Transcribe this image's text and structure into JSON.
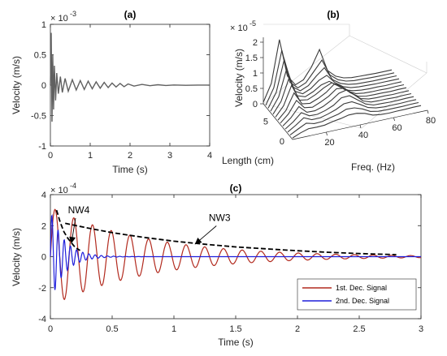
{
  "chart_data": [
    {
      "panel": "a",
      "type": "line",
      "title": "(a)",
      "xlabel": "Time (s)",
      "ylabel": "Velocity (m/s)",
      "exponent_label": "× 10",
      "exponent_power": "-3",
      "xlim": [
        0,
        4
      ],
      "ylim": [
        -1,
        1
      ],
      "xticks": [
        "0",
        "1",
        "2",
        "3",
        "4"
      ],
      "yticks": [
        "-1",
        "-0.5",
        "0",
        "0.5",
        "1"
      ],
      "series": [
        {
          "color": "#606060",
          "x": [
            0.0,
            0.02,
            0.04,
            0.06,
            0.08,
            0.1,
            0.13,
            0.16,
            0.2,
            0.25,
            0.3,
            0.37,
            0.45,
            0.55,
            0.65,
            0.75,
            0.85,
            0.95,
            1.05,
            1.15,
            1.25,
            1.35,
            1.45,
            1.55,
            1.65,
            1.75,
            1.85,
            1.95,
            2.1,
            2.3,
            2.5,
            2.7,
            2.9,
            3.1,
            3.4,
            3.7,
            4.0
          ],
          "y": [
            0.0,
            0.86,
            -0.6,
            0.5,
            -0.4,
            0.32,
            -0.25,
            0.2,
            -0.14,
            0.14,
            -0.12,
            0.11,
            -0.1,
            0.09,
            -0.08,
            0.075,
            -0.07,
            0.065,
            -0.06,
            0.055,
            -0.05,
            0.045,
            -0.04,
            0.035,
            -0.03,
            0.028,
            -0.025,
            0.02,
            -0.016,
            0.012,
            -0.009,
            0.007,
            -0.005,
            0.003,
            -0.002,
            0.001,
            0.0
          ]
        }
      ]
    },
    {
      "panel": "b",
      "type": "line",
      "title": "(b)",
      "xlabel": "Freq. (Hz)",
      "ylabel": "Velocity (m/s)",
      "zlabel": "Length (cm)",
      "exponent_label": "× 10",
      "exponent_power": "-5",
      "xlim": [
        0,
        80
      ],
      "zlim": [
        0,
        2
      ],
      "xticks": [
        "20",
        "40",
        "60",
        "80"
      ],
      "lengthticks": [
        "0",
        "5"
      ],
      "zticks": [
        "0",
        "0.5",
        "1",
        "1.5",
        "2"
      ],
      "freq": [
        0,
        5,
        10,
        15,
        20,
        25,
        30,
        35,
        40,
        45,
        50,
        55,
        60,
        65,
        70,
        75,
        80
      ],
      "spectra": [
        [
          0.05,
          0.6,
          1.95,
          0.7,
          0.35,
          0.45,
          0.8,
          1.3,
          0.55,
          0.3,
          0.18,
          0.12,
          0.1,
          0.08,
          0.06,
          0.05,
          0.04
        ],
        [
          0.05,
          0.55,
          1.7,
          0.6,
          0.35,
          0.45,
          0.75,
          1.05,
          0.5,
          0.28,
          0.17,
          0.12,
          0.1,
          0.08,
          0.06,
          0.05,
          0.04
        ],
        [
          0.05,
          0.5,
          1.5,
          0.55,
          0.35,
          0.45,
          0.7,
          0.9,
          0.45,
          0.26,
          0.16,
          0.11,
          0.09,
          0.07,
          0.06,
          0.05,
          0.04
        ],
        [
          0.05,
          0.45,
          1.3,
          0.5,
          0.35,
          0.45,
          0.65,
          0.75,
          0.45,
          0.25,
          0.15,
          0.11,
          0.09,
          0.07,
          0.06,
          0.05,
          0.04
        ],
        [
          0.05,
          0.4,
          1.1,
          0.45,
          0.35,
          0.45,
          0.6,
          0.65,
          0.45,
          0.24,
          0.15,
          0.1,
          0.08,
          0.07,
          0.05,
          0.05,
          0.04
        ],
        [
          0.05,
          0.35,
          0.95,
          0.4,
          0.35,
          0.45,
          0.6,
          0.7,
          0.55,
          0.3,
          0.15,
          0.1,
          0.08,
          0.07,
          0.05,
          0.05,
          0.04
        ],
        [
          0.05,
          0.3,
          0.8,
          0.38,
          0.33,
          0.42,
          0.55,
          0.75,
          0.6,
          0.34,
          0.16,
          0.1,
          0.08,
          0.07,
          0.05,
          0.05,
          0.04
        ],
        [
          0.05,
          0.28,
          0.65,
          0.35,
          0.3,
          0.4,
          0.52,
          0.7,
          0.65,
          0.4,
          0.18,
          0.1,
          0.08,
          0.07,
          0.05,
          0.05,
          0.04
        ],
        [
          0.05,
          0.25,
          0.55,
          0.3,
          0.28,
          0.35,
          0.48,
          0.65,
          0.7,
          0.45,
          0.2,
          0.1,
          0.08,
          0.07,
          0.05,
          0.05,
          0.04
        ],
        [
          0.05,
          0.22,
          0.45,
          0.28,
          0.26,
          0.32,
          0.42,
          0.6,
          0.6,
          0.4,
          0.2,
          0.1,
          0.08,
          0.06,
          0.05,
          0.05,
          0.04
        ],
        [
          0.05,
          0.2,
          0.38,
          0.25,
          0.24,
          0.3,
          0.38,
          0.5,
          0.5,
          0.35,
          0.18,
          0.1,
          0.07,
          0.06,
          0.05,
          0.05,
          0.04
        ],
        [
          0.05,
          0.18,
          0.3,
          0.22,
          0.22,
          0.28,
          0.33,
          0.42,
          0.4,
          0.3,
          0.15,
          0.09,
          0.07,
          0.06,
          0.05,
          0.05,
          0.04
        ],
        [
          0.05,
          0.15,
          0.22,
          0.2,
          0.2,
          0.25,
          0.28,
          0.33,
          0.32,
          0.25,
          0.13,
          0.08,
          0.06,
          0.06,
          0.05,
          0.05,
          0.04
        ]
      ]
    },
    {
      "panel": "c",
      "type": "line",
      "title": "(c)",
      "xlabel": "Time (s)",
      "ylabel": "Velocity (m/s)",
      "exponent_label": "× 10",
      "exponent_power": "-4",
      "xlim": [
        0,
        3
      ],
      "ylim": [
        -4,
        4
      ],
      "xticks": [
        "0",
        "0.5",
        "1",
        "1.5",
        "2",
        "2.5",
        "3"
      ],
      "yticks": [
        "-4",
        "-2",
        "0",
        "2",
        "4"
      ],
      "series": [
        {
          "name": "1st. Dec. Signal",
          "color": "#b22a1e",
          "amplitude": 3.2,
          "decay_rate": 1.3,
          "frequency_hz": 6.6
        },
        {
          "name": "2nd. Dec. Signal",
          "color": "#1f1fdc",
          "amplitude": 3.0,
          "decay_rate": 9.0,
          "frequency_hz": 20
        }
      ],
      "annotations": [
        {
          "label": "NW4",
          "envelope_color": "#000000",
          "envelope_x": [
            0.05,
            0.08,
            0.11,
            0.14,
            0.17,
            0.2,
            0.24
          ],
          "envelope_y": [
            3.0,
            2.2,
            1.6,
            1.2,
            0.9,
            0.6,
            0.4
          ],
          "arrow_tip": [
            0.17,
            0.85
          ],
          "label_pos": [
            0.23,
            2.8
          ]
        },
        {
          "label": "NW3",
          "envelope_color": "#000000",
          "envelope_x": [
            0.12,
            0.3,
            0.5,
            0.75,
            1.0,
            1.25,
            1.5,
            1.75,
            2.0,
            2.25,
            2.5,
            2.8
          ],
          "envelope_y": [
            2.15,
            1.85,
            1.55,
            1.25,
            1.0,
            0.8,
            0.63,
            0.5,
            0.38,
            0.28,
            0.2,
            0.13
          ],
          "arrow_tip": [
            1.17,
            0.8
          ],
          "label_pos": [
            1.37,
            2.3
          ]
        }
      ],
      "legend_position": "bottom-right"
    }
  ]
}
